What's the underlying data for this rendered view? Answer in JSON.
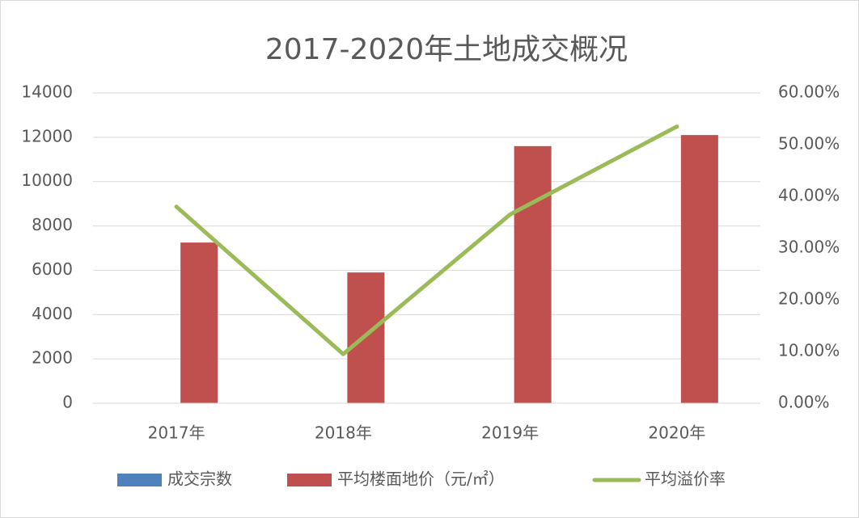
{
  "chart_data": {
    "type": "bar",
    "title": "2017-2020年土地成交概况",
    "categories": [
      "2017年",
      "2018年",
      "2019年",
      "2020年"
    ],
    "series": [
      {
        "name": "成交宗数",
        "color": "#4f81bd",
        "type": "bar",
        "values": [
          0,
          0,
          0,
          0
        ]
      },
      {
        "name": "平均楼面地价（元/㎡）",
        "color": "#c0504d",
        "type": "bar",
        "values": [
          7250,
          5900,
          11600,
          12100
        ]
      },
      {
        "name": "平均溢价率",
        "color": "#9bbb59",
        "type": "line",
        "axis": "y2",
        "values": [
          38,
          9.5,
          36.5,
          53.5
        ]
      }
    ],
    "ylim": [
      0,
      14000
    ],
    "yticks": [
      0,
      2000,
      4000,
      6000,
      8000,
      10000,
      12000,
      14000
    ],
    "y2lim": [
      0,
      60
    ],
    "y2ticks": [
      {
        "value": 0,
        "label": "0.00%"
      },
      {
        "value": 10,
        "label": "10.00%"
      },
      {
        "value": 20,
        "label": "20.00%"
      },
      {
        "value": 30,
        "label": "30.00%"
      },
      {
        "value": 40,
        "label": "40.00%"
      },
      {
        "value": 50,
        "label": "50.00%"
      },
      {
        "value": 60,
        "label": "60.00%"
      }
    ],
    "grid": true
  }
}
